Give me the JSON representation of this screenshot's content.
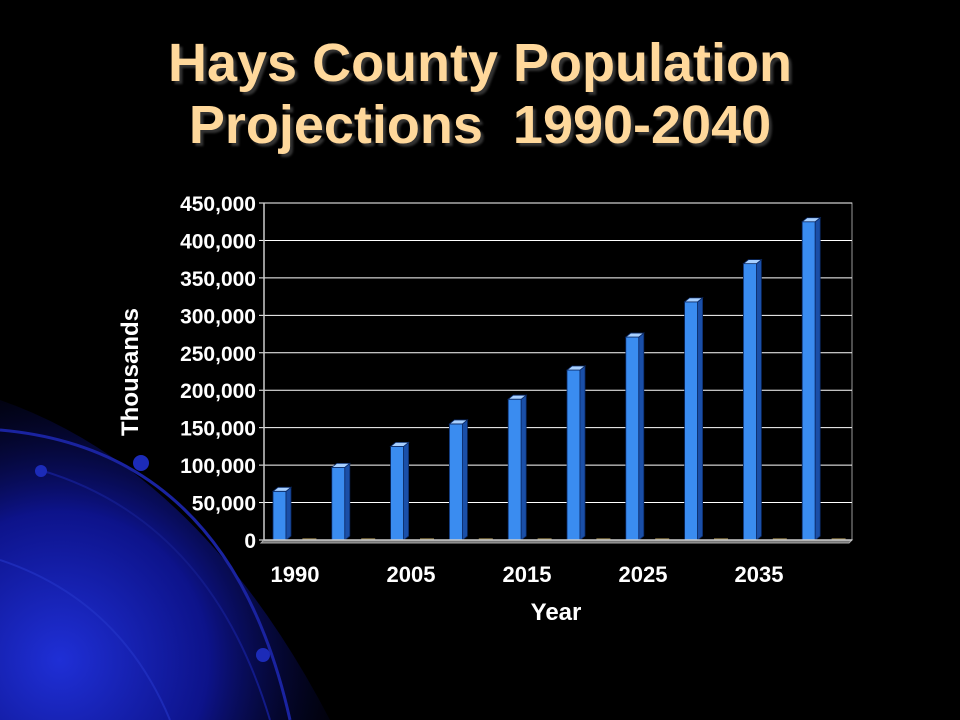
{
  "slide": {
    "title_line1": "Hays County Population",
    "title_line2": "Projections  1990-2040"
  },
  "colors": {
    "title": "#ffd89b",
    "bar_face": "#3a8cf0",
    "bar_side": "#1a4fa8",
    "bar_top": "#a8d0ff",
    "plot_bg": "#000000",
    "grid": "#ffffff",
    "axis_text": "#ffffff"
  },
  "chart_data": {
    "type": "bar",
    "title": "Hays County Population Projections  1990-2040",
    "xlabel": "Year",
    "ylabel": "Thousands",
    "ylim": [
      0,
      450000
    ],
    "yticks": [
      0,
      50000,
      100000,
      150000,
      200000,
      250000,
      300000,
      350000,
      400000,
      450000
    ],
    "ytick_labels": [
      "0",
      "50,000",
      "100,000",
      "150,000",
      "200,000",
      "250,000",
      "300,000",
      "350,000",
      "400,000",
      "450,000"
    ],
    "xtick_labels": [
      "1990",
      "2005",
      "2015",
      "2025",
      "2035"
    ],
    "grid": true,
    "legend": "none",
    "categories": [
      "",
      "",
      "",
      "",
      "",
      "",
      "",
      "",
      "",
      ""
    ],
    "values": [
      65000,
      97000,
      125000,
      155000,
      188000,
      227000,
      271000,
      318000,
      369000,
      425000
    ]
  }
}
